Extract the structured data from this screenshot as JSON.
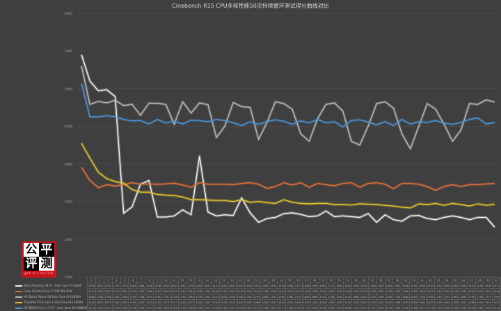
{
  "title": "Cinebench R15 CPU多核性能50次持续循环测试得分曲线对比",
  "logo": {
    "chars": [
      "公",
      "平",
      "评",
      "测"
    ],
    "subtitle": "gzz air review"
  },
  "colors": {
    "background": "#3f3f3f",
    "grid": "#4e4e4e",
    "dell": "#f2f2f2",
    "code": "#e0703a",
    "hp_power": "#b8b8b8",
    "thinkpad": "#e3c62a",
    "hp_fury": "#4a93d6"
  },
  "chart_data": {
    "type": "line",
    "title": "Cinebench R15 CPU多核性能50次持续循环测试得分曲线对比",
    "xlabel": "",
    "ylabel": "",
    "ylim": [
      1300,
      2000
    ],
    "yticks": [
      2000,
      1900,
      1800,
      1700,
      1600,
      1500,
      1400,
      1300
    ],
    "grid": true,
    "legend_position": "bottom-table",
    "x": [
      1,
      2,
      3,
      4,
      5,
      6,
      7,
      8,
      9,
      10,
      11,
      12,
      13,
      14,
      15,
      16,
      17,
      18,
      19,
      20,
      21,
      22,
      23,
      24,
      25,
      26,
      27,
      28,
      29,
      30,
      31,
      32,
      33,
      34,
      35,
      36,
      37,
      38,
      39,
      40,
      41,
      42,
      43,
      44,
      45,
      46,
      47,
      48,
      49,
      50
    ],
    "series": [
      {
        "name": "DELL Precision 3470 - Intel Core i7-1260P",
        "color": "#f2f2f2",
        "values": [
          1890,
          1820,
          1794,
          1797,
          1779,
          1469,
          1486,
          1546,
          1556,
          1459,
          1459,
          1462,
          1478,
          1465,
          1620,
          1472,
          1462,
          1465,
          1463,
          1510,
          1470,
          1445,
          1455,
          1458,
          1468,
          1470,
          1466,
          1460,
          1462,
          1475,
          1460,
          1462,
          1460,
          1458,
          1468,
          1445,
          1465,
          1452,
          1448,
          1462,
          1463,
          1455,
          1452,
          1458,
          1462,
          1458,
          1452,
          1458,
          1458,
          1432
        ]
      },
      {
        "name": "Code 10 Intel Core i7-10870H-45W",
        "color": "#e0703a",
        "values": [
          1591,
          1556,
          1537,
          1545,
          1541,
          1545,
          1550,
          1546,
          1547,
          1546,
          1547,
          1549,
          1544,
          1538,
          1550,
          1546,
          1546,
          1546,
          1545,
          1548,
          1550,
          1546,
          1535,
          1540,
          1550,
          1544,
          1550,
          1538,
          1548,
          1545,
          1542,
          1548,
          1550,
          1538,
          1548,
          1550,
          1546,
          1534,
          1548,
          1548,
          1546,
          1540,
          1530,
          1540,
          1545,
          1540,
          1545,
          1545,
          1547,
          1548
        ]
      },
      {
        "name": "HP Zbook Power G8 Intel Core i9-11950H",
        "color": "#b8b8b8",
        "values": [
          1860,
          1758,
          1766,
          1762,
          1769,
          1755,
          1758,
          1729,
          1761,
          1761,
          1758,
          1705,
          1765,
          1735,
          1762,
          1757,
          1670,
          1700,
          1763,
          1752,
          1750,
          1665,
          1710,
          1765,
          1760,
          1745,
          1680,
          1660,
          1720,
          1758,
          1762,
          1740,
          1660,
          1650,
          1700,
          1760,
          1765,
          1748,
          1680,
          1640,
          1700,
          1760,
          1745,
          1705,
          1660,
          1690,
          1760,
          1758,
          1770,
          1764
        ]
      },
      {
        "name": "ThinkPad P15v Gen 2 Intel Core i9-11800H",
        "color": "#e3c62a",
        "values": [
          1655,
          1615,
          1578,
          1561,
          1553,
          1549,
          1532,
          1525,
          1525,
          1519,
          1517,
          1516,
          1512,
          1505,
          1505,
          1504,
          1503,
          1503,
          1500,
          1505,
          1498,
          1500,
          1497,
          1495,
          1505,
          1498,
          1495,
          1494,
          1495,
          1495,
          1492,
          1492,
          1491,
          1494,
          1493,
          1492,
          1490,
          1488,
          1485,
          1483,
          1494,
          1492,
          1495,
          1490,
          1495,
          1492,
          1488,
          1494,
          1490,
          1493
        ]
      },
      {
        "name": "HP ZBOOK Fury 17 G7 - Intel Xeon W-10885M",
        "color": "#4a93d6",
        "values": [
          1814,
          1725,
          1725,
          1728,
          1725,
          1718,
          1714,
          1715,
          1706,
          1718,
          1709,
          1713,
          1706,
          1716,
          1715,
          1712,
          1718,
          1715,
          1709,
          1702,
          1712,
          1705,
          1712,
          1717,
          1713,
          1705,
          1714,
          1709,
          1718,
          1709,
          1712,
          1698,
          1715,
          1717,
          1711,
          1704,
          1712,
          1702,
          1718,
          1706,
          1712,
          1710,
          1715,
          1708,
          1705,
          1710,
          1718,
          1722,
          1706,
          1710
        ]
      }
    ]
  },
  "table": {
    "header": [
      "1",
      "2",
      "3",
      "4",
      "5",
      "6",
      "7",
      "8",
      "9",
      "10",
      "11",
      "12",
      "13",
      "14",
      "15",
      "16",
      "17",
      "18",
      "19",
      "20",
      "21",
      "22",
      "23",
      "24",
      "25",
      "26",
      "27",
      "28",
      "29",
      "30",
      "31",
      "32",
      "33",
      "34",
      "35",
      "36",
      "37",
      "38",
      "39",
      "40",
      "41",
      "42",
      "43",
      "44",
      "45",
      "46",
      "47",
      "48",
      "49",
      "50"
    ]
  }
}
